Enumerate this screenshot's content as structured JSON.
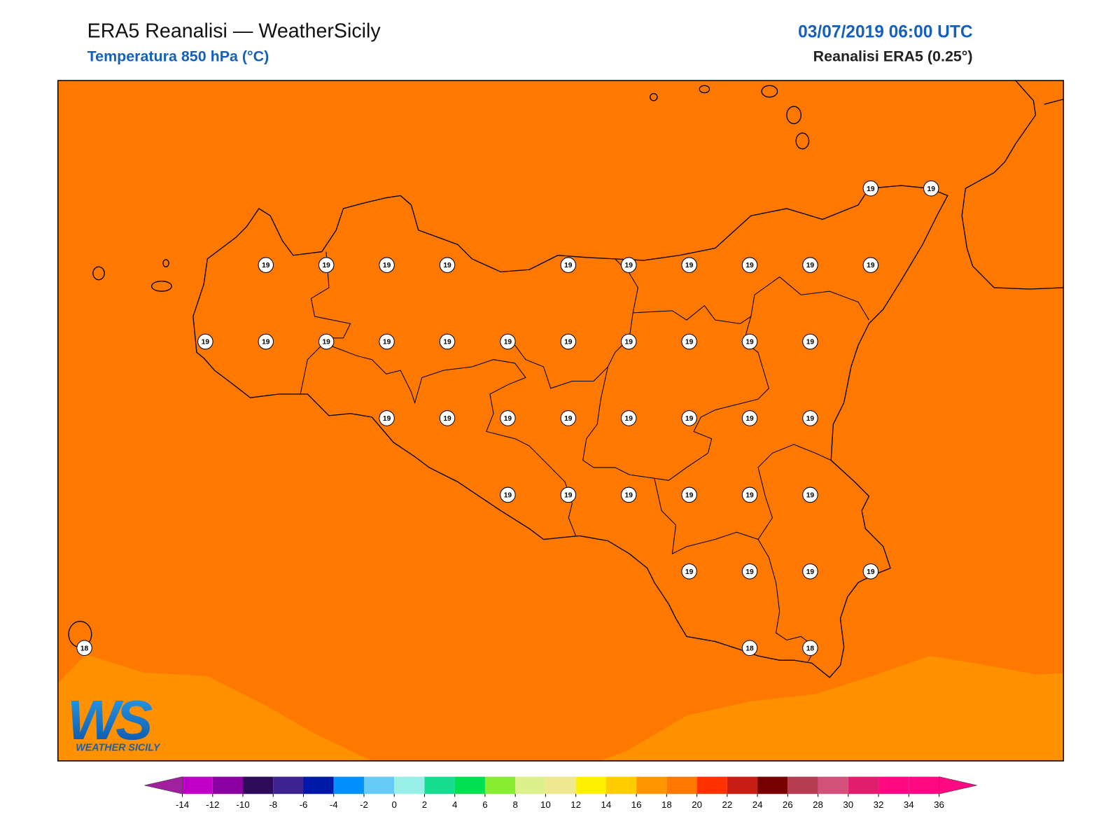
{
  "header": {
    "title": "ERA5 Reanalisi — WeatherSicily",
    "subtitle": "Temperatura 850 hPa (°C)",
    "date": "03/07/2019 06:00 UTC",
    "source": "Reanalisi ERA5 (0.25°)"
  },
  "stations": {
    "rows": [
      [
        null,
        null,
        null,
        null,
        null,
        null,
        null,
        null,
        null,
        null,
        null,
        null,
        null,
        19,
        19
      ],
      [
        null,
        null,
        null,
        19,
        19,
        19,
        19,
        null,
        19,
        19,
        19,
        19,
        19,
        19,
        null
      ],
      [
        null,
        null,
        19,
        19,
        19,
        19,
        19,
        19,
        19,
        19,
        19,
        19,
        19,
        null,
        null
      ],
      [
        null,
        null,
        null,
        null,
        null,
        19,
        19,
        19,
        19,
        19,
        19,
        19,
        19,
        null,
        null
      ],
      [
        null,
        null,
        null,
        null,
        null,
        null,
        null,
        19,
        19,
        19,
        19,
        19,
        19,
        null,
        null
      ],
      [
        null,
        null,
        null,
        null,
        null,
        null,
        null,
        null,
        null,
        null,
        19,
        19,
        19,
        19,
        null
      ],
      [
        18,
        null,
        null,
        null,
        null,
        null,
        null,
        null,
        null,
        null,
        null,
        18,
        18,
        null,
        null
      ]
    ]
  },
  "colorbar": {
    "ticks": [
      -14,
      -12,
      -10,
      -8,
      -6,
      -4,
      -2,
      0,
      2,
      4,
      6,
      8,
      10,
      12,
      14,
      16,
      18,
      20,
      22,
      24,
      26,
      28,
      30,
      32,
      34,
      36
    ],
    "colors": [
      "#c000c8",
      "#8a00a0",
      "#2e0a5a",
      "#3c2390",
      "#0018a8",
      "#0090ff",
      "#66ccf5",
      "#98f0e8",
      "#18dc90",
      "#00e050",
      "#88ec30",
      "#dcf08c",
      "#f0e890",
      "#fff000",
      "#ffcc00",
      "#ff9600",
      "#ff7800",
      "#ff3200",
      "#c81e14",
      "#780000",
      "#b43c50",
      "#d2507a",
      "#e01e6e",
      "#ff0a82",
      "#ff0a82"
    ],
    "under_color": "#a020a0",
    "over_color": "#ff0a82"
  },
  "logo": {
    "mark": "WS",
    "text": "WEATHER SICILY"
  }
}
